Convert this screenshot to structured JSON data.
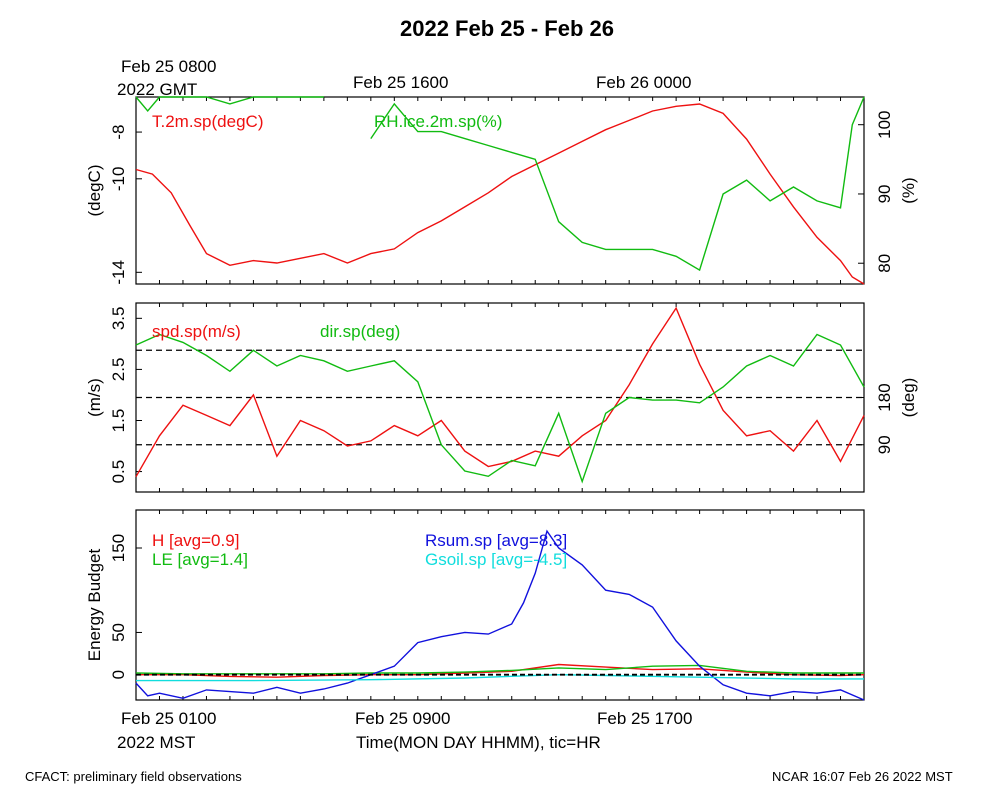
{
  "title": "2022 Feb 25 - Feb 26",
  "gmt_year": "2022 GMT",
  "gmt_ticks": [
    "Feb 25 0800",
    "Feb 25 1600",
    "Feb 26 0000"
  ],
  "mst_ticks": [
    "Feb 25 0100",
    "Feb 25 0900",
    "Feb 25 1700"
  ],
  "mst_year": "2022 MST",
  "xlabel": "Time(MON DAY HHMM), tic=HR",
  "footer_left": "CFACT: preliminary field observations",
  "footer_right": "NCAR 16:07 Feb 26 2022 MST",
  "colors": {
    "red": "#ee1111",
    "green": "#11bb11",
    "blue": "#1111dd",
    "cyan": "#11dddd",
    "black": "#000000"
  },
  "chart_data": [
    {
      "type": "line",
      "panel": "temperature-rh",
      "xlim": [
        0,
        31
      ],
      "ylabel_left": "(degC)",
      "ylabel_right": "(%)",
      "ylim_left": [
        -14.5,
        -6.5
      ],
      "yticks_left": [
        "-14",
        "-10",
        "-8"
      ],
      "yticks_left_values": [
        -14,
        -10,
        -8
      ],
      "ylim_right": [
        77,
        104
      ],
      "yticks_right": [
        "80",
        "90",
        "100"
      ],
      "yticks_right_values": [
        80,
        90,
        100
      ],
      "series": [
        {
          "name": "T.2m.sp(degC)",
          "axis": "left",
          "color": "red",
          "x": [
            0,
            0.7,
            1.5,
            2.3,
            3,
            4,
            5,
            6,
            7,
            8,
            9,
            10,
            11,
            12,
            13,
            14,
            15,
            16,
            17,
            18,
            19,
            20,
            21,
            22,
            23,
            24,
            25,
            26,
            27,
            28,
            29,
            30,
            30.5,
            31
          ],
          "y": [
            -9.6,
            -9.8,
            -10.6,
            -12.0,
            -13.2,
            -13.7,
            -13.5,
            -13.6,
            -13.4,
            -13.2,
            -13.6,
            -13.2,
            -13.0,
            -12.3,
            -11.8,
            -11.2,
            -10.6,
            -9.9,
            -9.4,
            -8.9,
            -8.4,
            -7.9,
            -7.5,
            -7.1,
            -6.9,
            -6.8,
            -7.2,
            -8.3,
            -9.8,
            -11.2,
            -12.5,
            -13.5,
            -14.2,
            -14.5
          ]
        },
        {
          "name": "RH.ice.2m.sp(%)",
          "axis": "right",
          "color": "green",
          "x": [
            0,
            0.5,
            1,
            2,
            3,
            4,
            5,
            6,
            7,
            8,
            9,
            10,
            11,
            12,
            13,
            14,
            15,
            16,
            17,
            18,
            19,
            20,
            21,
            22,
            23,
            24,
            25,
            26,
            27,
            28,
            29,
            30,
            30.5,
            31
          ],
          "y": [
            104,
            102,
            104,
            104,
            104,
            103,
            104,
            104,
            104,
            104,
            null,
            98,
            103,
            99,
            99,
            98,
            97,
            96,
            95,
            86,
            83,
            82,
            82,
            82,
            81,
            79,
            90,
            92,
            89,
            91,
            89,
            88,
            100,
            104
          ]
        }
      ],
      "legend": [
        "T.2m.sp(degC)",
        "RH.ice.2m.sp(%)"
      ]
    },
    {
      "type": "line",
      "panel": "wind",
      "xlim": [
        0,
        31
      ],
      "ylabel_left": "(m/s)",
      "ylabel_right": "(deg)",
      "ylim_left": [
        0.1,
        3.8
      ],
      "yticks_left": [
        "0.5",
        "1.5",
        "2.5",
        "3.5"
      ],
      "yticks_left_values": [
        0.5,
        1.5,
        2.5,
        3.5
      ],
      "ylim_right": [
        0,
        360
      ],
      "yticks_right": [
        "90",
        "180"
      ],
      "yticks_right_values": [
        90,
        180
      ],
      "reference_lines_deg": [
        90,
        180,
        270
      ],
      "series": [
        {
          "name": "spd.sp(m/s)",
          "axis": "left",
          "color": "red",
          "x": [
            0,
            1,
            2,
            3,
            4,
            5,
            6,
            7,
            8,
            9,
            10,
            11,
            12,
            13,
            14,
            15,
            16,
            17,
            18,
            19,
            20,
            21,
            22,
            23,
            24,
            25,
            26,
            27,
            28,
            29,
            30,
            31
          ],
          "y": [
            0.4,
            1.2,
            1.8,
            1.6,
            1.4,
            2.0,
            0.8,
            1.5,
            1.3,
            1.0,
            1.1,
            1.4,
            1.2,
            1.5,
            0.9,
            0.6,
            0.7,
            0.9,
            0.8,
            1.2,
            1.5,
            2.2,
            3.0,
            3.7,
            2.6,
            1.7,
            1.2,
            1.3,
            0.9,
            1.5,
            0.7,
            1.6
          ]
        },
        {
          "name": "dir.sp(deg)",
          "axis": "right",
          "color": "green",
          "x": [
            0,
            1,
            2,
            3,
            4,
            5,
            6,
            7,
            8,
            9,
            10,
            11,
            12,
            13,
            14,
            15,
            16,
            17,
            18,
            19,
            20,
            21,
            22,
            23,
            24,
            25,
            26,
            27,
            28,
            29,
            30,
            31
          ],
          "y": [
            280,
            300,
            285,
            260,
            230,
            270,
            240,
            260,
            250,
            230,
            240,
            250,
            210,
            90,
            40,
            30,
            60,
            50,
            150,
            20,
            150,
            180,
            175,
            175,
            170,
            200,
            240,
            260,
            240,
            300,
            280,
            200
          ]
        }
      ],
      "legend": [
        "spd.sp(m/s)",
        "dir.sp(deg)"
      ]
    },
    {
      "type": "line",
      "panel": "energy-budget",
      "xlim": [
        0,
        31
      ],
      "ylabel": "Energy Budget",
      "ylim": [
        -30,
        195
      ],
      "yticks": [
        "0",
        "50",
        "150"
      ],
      "yticks_values": [
        0,
        50,
        150
      ],
      "series": [
        {
          "name": "H [avg=0.9]",
          "color": "red",
          "x": [
            0,
            2,
            4,
            6,
            8,
            10,
            12,
            14,
            16,
            18,
            20,
            22,
            24,
            26,
            28,
            30,
            31
          ],
          "y": [
            0,
            0,
            -2,
            -3,
            -1,
            0,
            0,
            2,
            4,
            12,
            9,
            6,
            7,
            3,
            0,
            -1,
            0
          ]
        },
        {
          "name": "LE [avg=1.4]",
          "color": "green",
          "x": [
            0,
            2,
            4,
            6,
            8,
            10,
            12,
            14,
            16,
            18,
            20,
            22,
            24,
            26,
            28,
            30,
            31
          ],
          "y": [
            2,
            1,
            1,
            1,
            1,
            2,
            2,
            3,
            5,
            8,
            6,
            10,
            11,
            4,
            2,
            2,
            2
          ]
        },
        {
          "name": "Rsum.sp [avg=8.3]",
          "color": "blue",
          "x": [
            0,
            0.5,
            1,
            2,
            3,
            4,
            5,
            6,
            7,
            8,
            9,
            10,
            11,
            12,
            13,
            14,
            15,
            16,
            16.5,
            17,
            17.5,
            18,
            19,
            20,
            21,
            22,
            23,
            24,
            25,
            26,
            27,
            28,
            29,
            30,
            31
          ],
          "y": [
            -10,
            -25,
            -22,
            -28,
            -18,
            -20,
            -22,
            -15,
            -22,
            -17,
            -10,
            0,
            10,
            38,
            45,
            50,
            48,
            60,
            85,
            120,
            170,
            150,
            130,
            100,
            95,
            80,
            40,
            10,
            -12,
            -22,
            -25,
            -20,
            -22,
            -18,
            -30
          ]
        },
        {
          "name": "Gsoil.sp [avg=-4.5]",
          "color": "cyan",
          "x": [
            0,
            5,
            10,
            14,
            18,
            20,
            24,
            28,
            31
          ],
          "y": [
            -7,
            -7,
            -6,
            -4,
            0,
            -1,
            -3,
            -5,
            -5
          ]
        }
      ],
      "legend": [
        "H [avg=0.9]",
        "LE [avg=1.4]",
        "Rsum.sp [avg=8.3]",
        "Gsoil.sp [avg=-4.5]"
      ]
    }
  ]
}
